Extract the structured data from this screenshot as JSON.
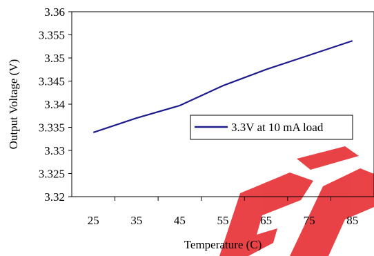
{
  "chart_data": {
    "type": "line",
    "xlabel": "Temperature (C)",
    "ylabel": "Output Voltage (V)",
    "x_categories": [
      "25",
      "35",
      "45",
      "55",
      "65",
      "75",
      "85"
    ],
    "ylim": [
      3.32,
      3.36
    ],
    "yticks": [
      "3.32",
      "3.325",
      "3.33",
      "3.335",
      "3.34",
      "3.345",
      "3.35",
      "3.355",
      "3.36"
    ],
    "grid": false,
    "legend_placement": "center-right",
    "series": [
      {
        "name": "3.3V at 10 mA load",
        "color": "#1c1c8c",
        "values": [
          3.3339,
          3.337,
          3.3397,
          3.344,
          3.3475,
          3.3506,
          3.3537
        ]
      }
    ]
  },
  "watermark": {
    "text": "EP",
    "color": "#e8383d"
  }
}
